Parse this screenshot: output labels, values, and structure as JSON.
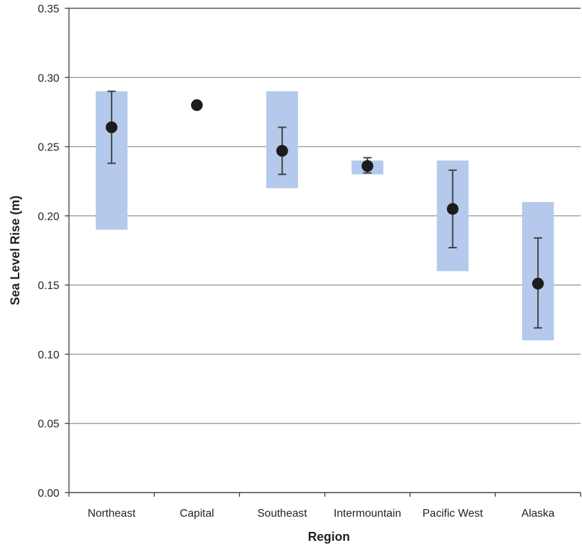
{
  "chart_data": {
    "type": "scatter",
    "title": "",
    "xlabel": "Region",
    "ylabel": "Sea Level Rise (m)",
    "ylim": [
      0,
      0.35
    ],
    "ytick_step": 0.05,
    "yticks": [
      "0.00",
      "0.05",
      "0.10",
      "0.15",
      "0.20",
      "0.25",
      "0.30",
      "0.35"
    ],
    "grid": "horizontal",
    "categories": [
      "Northeast",
      "Capital",
      "Southeast",
      "Intermountain",
      "Pacific West",
      "Alaska"
    ],
    "points": [
      {
        "category": "Northeast",
        "value": 0.264,
        "err_low": 0.238,
        "err_high": 0.29,
        "range_low": 0.19,
        "range_high": 0.29
      },
      {
        "category": "Capital",
        "value": 0.28,
        "err_low": null,
        "err_high": null,
        "range_low": null,
        "range_high": null
      },
      {
        "category": "Southeast",
        "value": 0.247,
        "err_low": 0.23,
        "err_high": 0.264,
        "range_low": 0.22,
        "range_high": 0.29
      },
      {
        "category": "Intermountain",
        "value": 0.236,
        "err_low": 0.231,
        "err_high": 0.242,
        "range_low": 0.23,
        "range_high": 0.24
      },
      {
        "category": "Pacific West",
        "value": 0.205,
        "err_low": 0.177,
        "err_high": 0.233,
        "range_low": 0.16,
        "range_high": 0.24
      },
      {
        "category": "Alaska",
        "value": 0.151,
        "err_low": 0.119,
        "err_high": 0.184,
        "range_low": 0.11,
        "range_high": 0.21
      }
    ],
    "colors": {
      "range_box": "#b4c9eb",
      "marker": "#1c1c1c",
      "error_bar": "#404040",
      "grid": "#9a9a9a",
      "axis": "#444444"
    }
  }
}
